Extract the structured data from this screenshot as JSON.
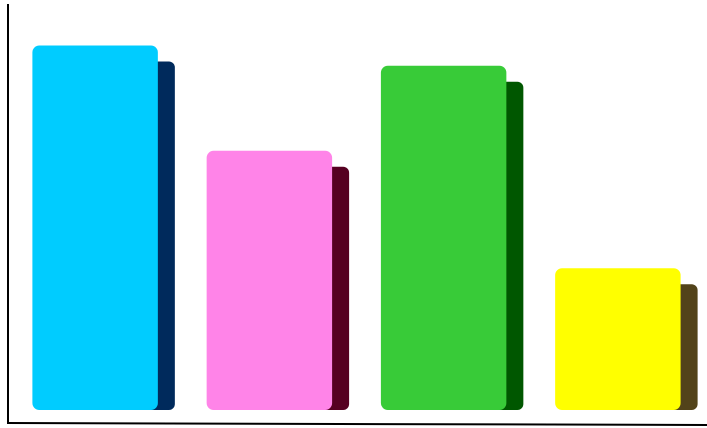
{
  "chart_data": {
    "type": "bar",
    "categories": [
      null,
      null,
      null,
      null
    ],
    "values": [
      90,
      64,
      85,
      35
    ],
    "colors": [
      "#00ccff",
      "#ff84e8",
      "#38cb38",
      "#ffff00"
    ],
    "shadow_colors": [
      "#002a5c",
      "#560021",
      "#005700",
      "#52431a"
    ],
    "ylim": [
      0,
      100
    ]
  }
}
